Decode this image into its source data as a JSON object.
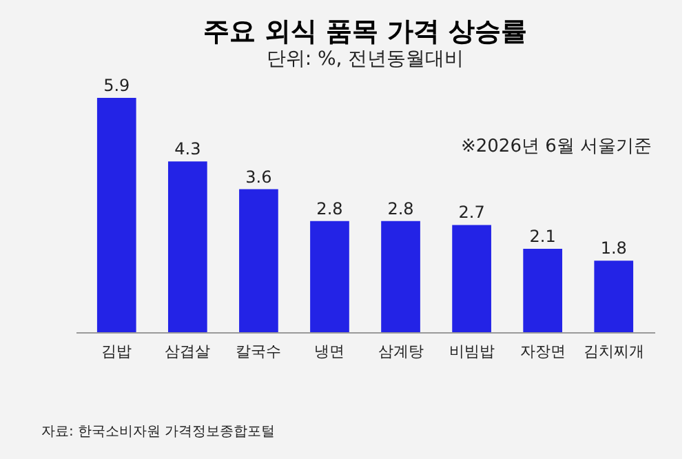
{
  "chart_data": {
    "type": "bar",
    "title": "주요 외식 품목 가격 상승률",
    "subtitle": "단위: %, 전년동월대비",
    "categories": [
      "김밥",
      "삼겹살",
      "칼국수",
      "냉면",
      "삼계탕",
      "비빔밥",
      "자장면",
      "김치찌개"
    ],
    "values": [
      5.9,
      4.3,
      3.6,
      2.8,
      2.8,
      2.7,
      2.1,
      1.8
    ],
    "color": "#2323e6",
    "data_labels": true,
    "annotations": [
      "※2026년 6월 서울기준",
      "자료: 한국소비자원 가격정보종합포털"
    ]
  }
}
